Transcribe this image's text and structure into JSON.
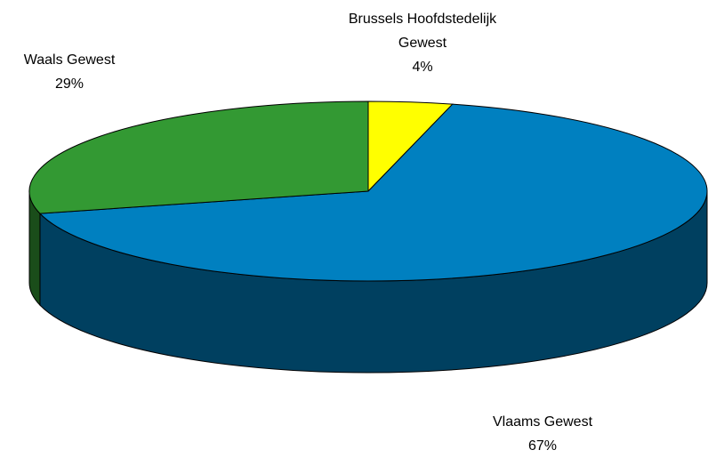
{
  "chart_data": {
    "type": "pie3d",
    "categories": [
      "Brussels Hoofdstedelijk Gewest",
      "Vlaams Gewest",
      "Waals Gewest"
    ],
    "values": [
      4,
      67,
      29
    ],
    "value_labels": [
      "4%",
      "67%",
      "29%"
    ],
    "colors": [
      "#ffff00",
      "#0080c0",
      "#339933"
    ]
  }
}
